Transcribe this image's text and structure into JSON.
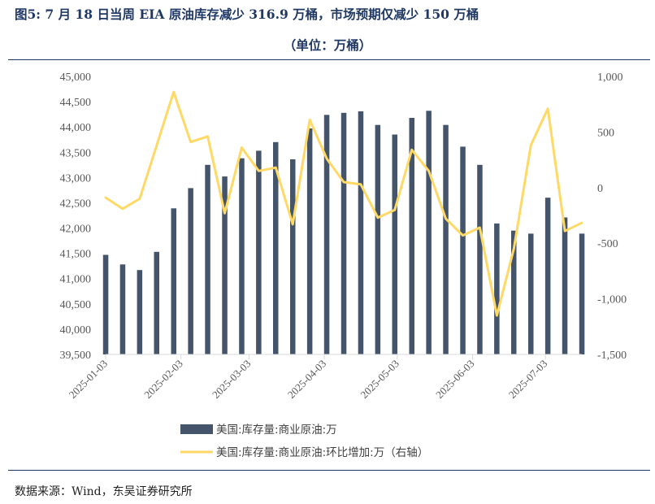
{
  "figure": {
    "title": "图5:  7 月 18 日当周 EIA 原油库存减少 316.9 万桶，市场预期仅减少 150 万桶",
    "subtitle": "（单位：万桶）",
    "source": "数据来源：Wind，东吴证券研究所"
  },
  "chart_data": {
    "type": "bar",
    "x": [
      "2025-01-03",
      "2025-01-10",
      "2025-01-17",
      "2025-01-24",
      "2025-01-31",
      "2025-02-07",
      "2025-02-14",
      "2025-02-21",
      "2025-02-28",
      "2025-03-07",
      "2025-03-14",
      "2025-03-21",
      "2025-03-28",
      "2025-04-04",
      "2025-04-11",
      "2025-04-18",
      "2025-04-25",
      "2025-05-02",
      "2025-05-09",
      "2025-05-16",
      "2025-05-23",
      "2025-05-30",
      "2025-06-06",
      "2025-06-13",
      "2025-06-20",
      "2025-06-27",
      "2025-07-04",
      "2025-07-11",
      "2025-07-18"
    ],
    "x_tick_labels": [
      "2025-01-03",
      "2025-02-03",
      "2025-03-03",
      "2025-04-03",
      "2025-05-03",
      "2025-06-03",
      "2025-07-03"
    ],
    "series": [
      {
        "name": "美国:库存量:商业原油:万",
        "type": "bar",
        "axis": "left",
        "color": "#44546a",
        "values": [
          41470,
          41280,
          41170,
          41530,
          42390,
          42790,
          43250,
          43020,
          43380,
          43530,
          43700,
          43360,
          43970,
          44240,
          44280,
          44310,
          44040,
          43850,
          44180,
          44320,
          44040,
          43610,
          43250,
          42090,
          41950,
          41890,
          42600,
          42210,
          41890
        ]
      },
      {
        "name": "美国:库存量:商业原油:环比增加:万（右轴）",
        "type": "line",
        "axis": "right",
        "color": "#ffd966",
        "values": [
          -90,
          -190,
          -100,
          380,
          860,
          410,
          460,
          -230,
          360,
          150,
          180,
          -330,
          610,
          260,
          50,
          30,
          -270,
          -200,
          340,
          150,
          -280,
          -430,
          -360,
          -1150,
          -550,
          380,
          710,
          -390,
          -317
        ]
      }
    ],
    "y_left": {
      "min": 39500,
      "max": 45000,
      "step": 500,
      "tick_labels": [
        "39,500",
        "40,000",
        "40,500",
        "41,000",
        "41,500",
        "42,000",
        "42,500",
        "43,000",
        "43,500",
        "44,000",
        "44,500",
        "45,000"
      ]
    },
    "y_right": {
      "min": -1500,
      "max": 1000,
      "step": 500,
      "tick_labels": [
        "-1,500",
        "-1,000",
        "-500",
        "0",
        "500",
        "1,000"
      ]
    },
    "legend": "bottom",
    "grid": false
  }
}
